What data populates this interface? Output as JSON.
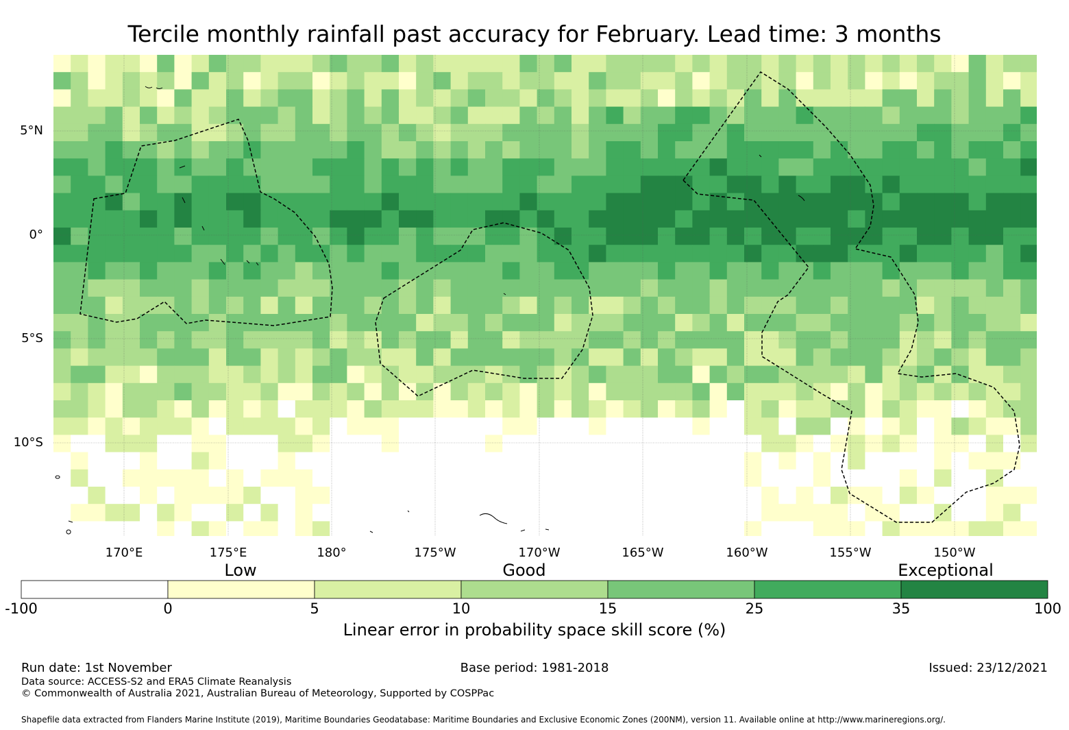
{
  "title": "Tercile monthly rainfall past accuracy for February. Lead time: 3 months",
  "map": {
    "lon_labels": [
      "170°E",
      "175°E",
      "180°",
      "175°W",
      "170°W",
      "165°W",
      "160°W",
      "155°W",
      "150°W"
    ],
    "lat_labels": [
      "5°N",
      "0°",
      "5°S",
      "10°S"
    ],
    "skill_bands": [
      {
        "lat": 7,
        "score": 10
      },
      {
        "lat": 5,
        "score": 15
      },
      {
        "lat": 3,
        "score": 25
      },
      {
        "lat": 1,
        "score": 35
      },
      {
        "lat": -1,
        "score": 25
      },
      {
        "lat": -3,
        "score": 15
      },
      {
        "lat": -5,
        "score": 15
      },
      {
        "lat": -7,
        "score": 10
      },
      {
        "lat": -9,
        "score": 5
      },
      {
        "lat": -11,
        "score": 0
      },
      {
        "lat": -13,
        "score": 0
      }
    ]
  },
  "colorbar": {
    "category_labels": [
      "Low",
      "Good",
      "Exceptional"
    ],
    "boundaries": [
      "-100",
      "0",
      "5",
      "10",
      "15",
      "25",
      "35",
      "100"
    ],
    "colors": [
      "#ffffff",
      "#ffffcc",
      "#d9f0a3",
      "#addd8e",
      "#78c679",
      "#41ab5d",
      "#238443"
    ],
    "label": "Linear error in probability space skill score (%)"
  },
  "footer": {
    "run_date": "Run date: 1st November",
    "base_period": "Base period: 1981-2018",
    "issued": "Issued: 23/12/2021",
    "data_source": "Data source: ACCESS-S2 and ERA5 Climate Reanalysis",
    "copyright": "© Commonwealth of Australia 2021, Australian Bureau of Meteorology, Supported by COSPPac",
    "shapefile": "Shapefile data extracted from Flanders Marine Institute (2019), Maritime Boundaries Geodatabase: Maritime Boundaries and Exclusive Economic Zones (200NM), version 11. Available online at http://www.marineregions.org/."
  }
}
